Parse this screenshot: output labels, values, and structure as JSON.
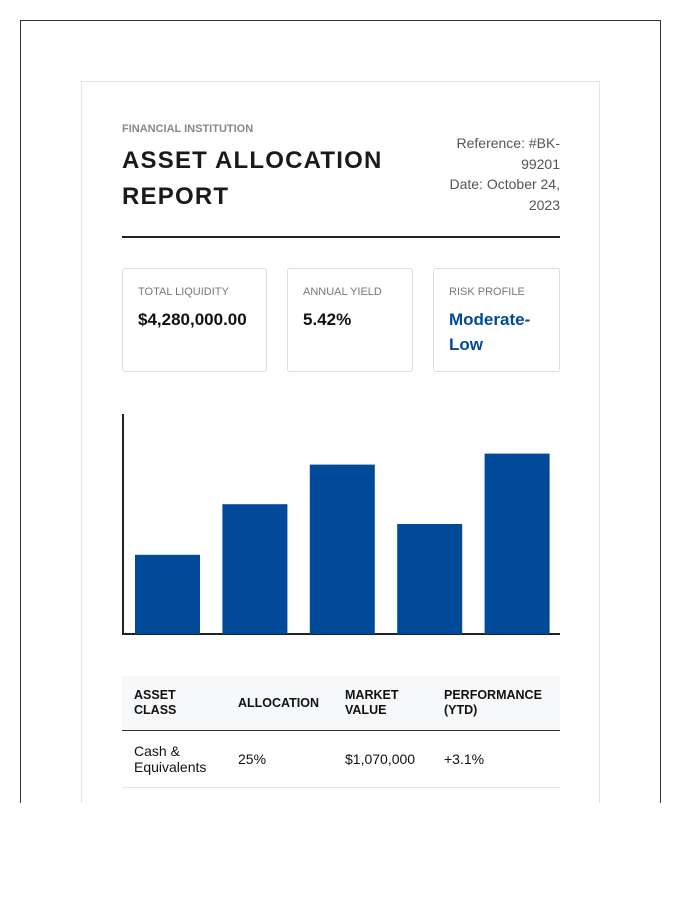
{
  "header": {
    "label": "FINANCIAL INSTITUTION",
    "title": "ASSET ALLOCATION REPORT",
    "reference": "Reference: #BK-99201",
    "date": "Date: October 24, 2023"
  },
  "metrics": [
    {
      "label": "TOTAL LIQUIDITY",
      "value": "$4,280,000.00"
    },
    {
      "label": "ANNUAL YIELD",
      "value": "5.42%"
    },
    {
      "label": "RISK PROFILE",
      "value": "Moderate-Low"
    }
  ],
  "chart_data": {
    "type": "bar",
    "values": [
      36,
      59,
      77,
      50,
      82
    ],
    "color": "#004a99",
    "ylim": [
      0,
      100
    ]
  },
  "table": {
    "columns": [
      "ASSET CLASS",
      "ALLOCATION",
      "MARKET VALUE",
      "PERFORMANCE (YTD)"
    ],
    "rows": [
      [
        "Cash & Equivalents",
        "25%",
        "$1,070,000",
        "+3.1%"
      ]
    ]
  }
}
